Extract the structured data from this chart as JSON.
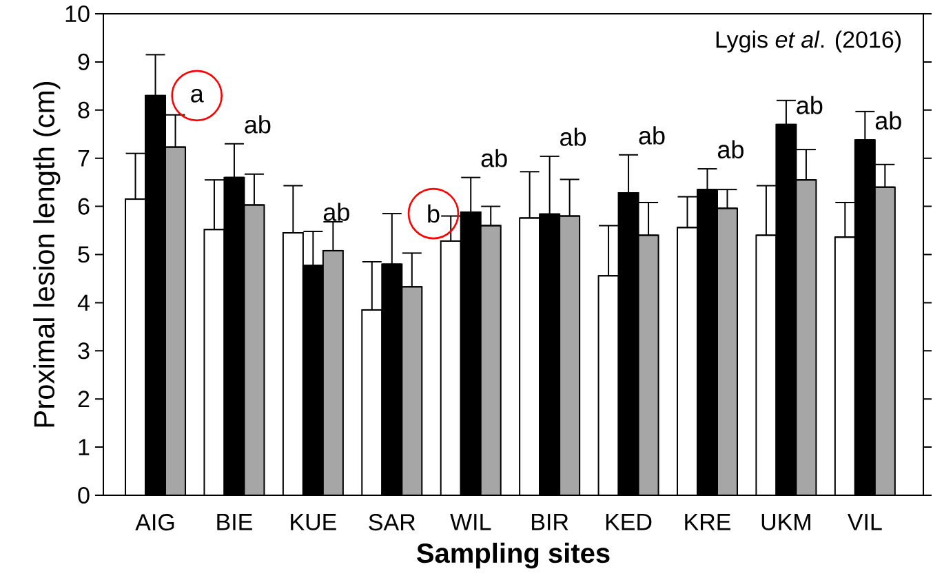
{
  "chart_data": {
    "type": "bar",
    "xlabel": "Sampling sites",
    "ylabel": "Proximal lesion length (cm)",
    "categories": [
      "AIG",
      "BIE",
      "KUE",
      "SAR",
      "WIL",
      "BIR",
      "KED",
      "KRE",
      "UKM",
      "VIL"
    ],
    "series": [
      {
        "color": "#ffffff",
        "values": [
          6.15,
          5.52,
          5.45,
          3.85,
          5.28,
          5.76,
          4.56,
          5.56,
          5.4,
          5.36
        ],
        "errors": [
          [
            6.15,
            7.1
          ],
          [
            5.52,
            6.55
          ],
          [
            5.45,
            6.43
          ],
          [
            3.85,
            4.85
          ],
          [
            5.28,
            5.8
          ],
          [
            5.76,
            6.72
          ],
          [
            4.56,
            5.6
          ],
          [
            5.56,
            6.2
          ],
          [
            5.4,
            6.43
          ],
          [
            5.36,
            6.08
          ]
        ]
      },
      {
        "color": "#000000",
        "values": [
          8.3,
          6.6,
          4.77,
          4.8,
          5.88,
          5.84,
          6.28,
          6.35,
          7.7,
          7.38
        ],
        "errors": [
          [
            8.3,
            9.15
          ],
          [
            6.6,
            7.3
          ],
          [
            4.77,
            5.48
          ],
          [
            4.8,
            5.85
          ],
          [
            5.88,
            6.6
          ],
          [
            5.84,
            7.04
          ],
          [
            6.28,
            7.07
          ],
          [
            6.35,
            6.78
          ],
          [
            7.7,
            8.2
          ],
          [
            7.38,
            7.97
          ]
        ]
      },
      {
        "color": "#a6a6a6",
        "values": [
          7.23,
          6.03,
          5.08,
          4.33,
          5.6,
          5.8,
          5.4,
          5.96,
          6.55,
          6.4
        ],
        "errors": [
          [
            7.23,
            7.9
          ],
          [
            6.03,
            6.67
          ],
          [
            5.08,
            5.68
          ],
          [
            4.33,
            5.03
          ],
          [
            5.6,
            6.0
          ],
          [
            5.8,
            6.56
          ],
          [
            5.4,
            6.08
          ],
          [
            5.96,
            6.35
          ],
          [
            6.55,
            7.18
          ],
          [
            6.4,
            6.87
          ]
        ]
      }
    ],
    "ylim": [
      0,
      10
    ],
    "yticks": [
      0,
      1,
      2,
      3,
      4,
      5,
      6,
      7,
      8,
      9,
      10
    ],
    "annotations": [
      {
        "text": "a",
        "x": "AIG",
        "y": 8.3
      },
      {
        "text": "ab",
        "x": "BIE",
        "y": 7.3
      },
      {
        "text": "ab",
        "x": "KUE",
        "y": 5.48
      },
      {
        "text": "b",
        "x": "SAR",
        "y": 5.85
      },
      {
        "text": "ab",
        "x": "WIL",
        "y": 6.6
      },
      {
        "text": "ab",
        "x": "BIR",
        "y": 7.04
      },
      {
        "text": "ab",
        "x": "KED",
        "y": 7.07
      },
      {
        "text": "ab",
        "x": "KRE",
        "y": 6.78
      },
      {
        "text": "ab",
        "x": "UKM",
        "y": 7.7
      },
      {
        "text": "ab",
        "x": "VIL",
        "y": 7.38
      },
      "Lygis *et al*. (2016)"
    ]
  }
}
